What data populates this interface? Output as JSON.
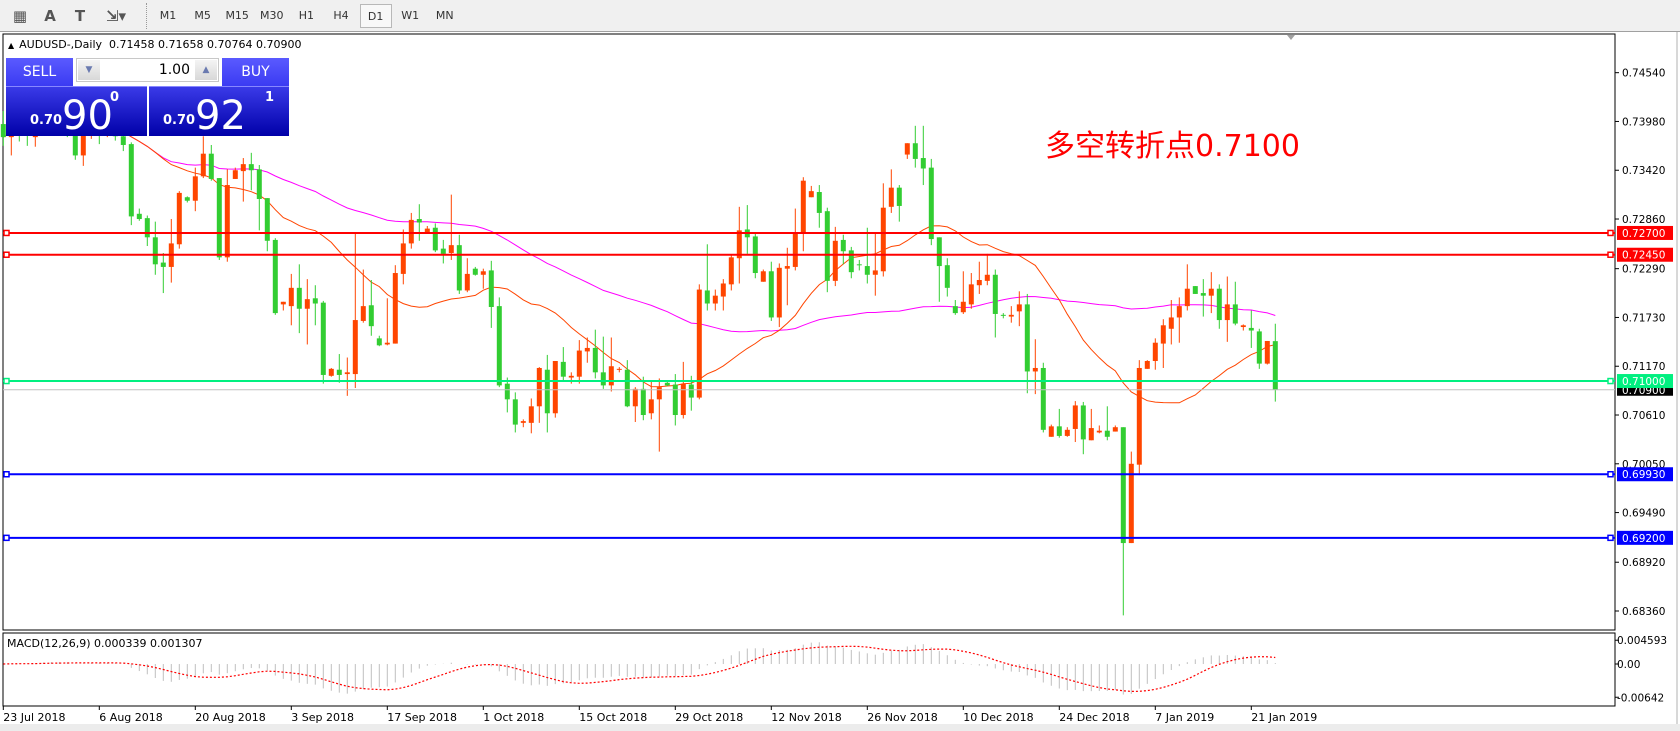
{
  "toolbar": {
    "tools": [
      {
        "name": "grid-f-icon",
        "glyph": "▦"
      },
      {
        "name": "text-icon",
        "glyph": "A"
      },
      {
        "name": "text-label-icon",
        "glyph": "T"
      },
      {
        "name": "arrows-icon",
        "glyph": "⇲▾"
      }
    ],
    "timeframes": [
      "M1",
      "M5",
      "M15",
      "M30",
      "H1",
      "H4",
      "D1",
      "W1",
      "MN"
    ],
    "active_timeframe": "D1"
  },
  "chart": {
    "symbol_title": "AUDUSD-,Daily",
    "ohlc_text": "0.71458 0.71658 0.70764 0.70900",
    "annotation": "多空转折点0.7100",
    "colors": {
      "bull": "#ff4500",
      "bear": "#32cd32",
      "ma_fast": "#ff4500",
      "ma_slow": "#ff00ff",
      "annotation": "#ff0000"
    },
    "price_ticks": [
      "0.74540",
      "0.73980",
      "0.73420",
      "0.72860",
      "0.72290",
      "0.71730",
      "0.71170",
      "0.70610",
      "0.70050",
      "0.69490",
      "0.68920",
      "0.68360"
    ],
    "levels": [
      {
        "price": 0.727,
        "label": "0.72700",
        "color": "#ff0000"
      },
      {
        "price": 0.7245,
        "label": "0.72450",
        "color": "#ff0000"
      },
      {
        "price": 0.71,
        "label": "0.71000",
        "color": "#00f080"
      },
      {
        "price": 0.6993,
        "label": "0.69930",
        "color": "#0000ff"
      },
      {
        "price": 0.692,
        "label": "0.69200",
        "color": "#0000ff"
      }
    ],
    "bid": {
      "price": 0.709,
      "label": "0.70900",
      "color": "#c0c0c0"
    }
  },
  "trade_panel": {
    "sell_label": "SELL",
    "buy_label": "BUY",
    "lot": "1.00",
    "sell": {
      "prefix": "0.70",
      "big": "90",
      "sup": "0"
    },
    "buy": {
      "prefix": "0.70",
      "big": "92",
      "sup": "1"
    }
  },
  "macd": {
    "label": "MACD(12,26,9) 0.000339 0.001307",
    "ticks": [
      "0.004593",
      "0.00",
      "-0.00642"
    ],
    "tick_values": [
      0.004593,
      0,
      -0.00642
    ],
    "ylim": [
      -0.00811,
      0.00599
    ],
    "hist_color": "#c0c0c0",
    "signal_color": "#ff0000"
  },
  "date_axis": [
    "23 Jul 2018",
    "6 Aug 2018",
    "20 Aug 2018",
    "3 Sep 2018",
    "17 Sep 2018",
    "1 Oct 2018",
    "15 Oct 2018",
    "29 Oct 2018",
    "12 Nov 2018",
    "26 Nov 2018",
    "10 Dec 2018",
    "24 Dec 2018",
    "7 Jan 2019",
    "21 Jan 2019"
  ],
  "chart_data": {
    "type": "candlestick",
    "title": "AUDUSD-,Daily",
    "ylim": [
      0.68142,
      0.74984
    ],
    "ohlc": [
      [
        0.7395,
        0.741,
        0.737,
        0.738
      ],
      [
        0.738,
        0.7405,
        0.7359,
        0.739
      ],
      [
        0.739,
        0.74,
        0.7375,
        0.7385
      ],
      [
        0.7392,
        0.7402,
        0.737,
        0.7382
      ],
      [
        0.738,
        0.7405,
        0.7369,
        0.739
      ],
      [
        0.739,
        0.741,
        0.7382,
        0.7398
      ],
      [
        0.7398,
        0.7415,
        0.7385,
        0.7402
      ],
      [
        0.7402,
        0.742,
        0.7388,
        0.7395
      ],
      [
        0.7395,
        0.7405,
        0.738,
        0.7385
      ],
      [
        0.7385,
        0.74,
        0.7354,
        0.7359
      ],
      [
        0.7359,
        0.74,
        0.7347,
        0.7385
      ],
      [
        0.7385,
        0.7402,
        0.7378,
        0.7392
      ],
      [
        0.7392,
        0.7405,
        0.7372,
        0.7388
      ],
      [
        0.7388,
        0.74,
        0.738,
        0.7394
      ],
      [
        0.7394,
        0.7402,
        0.7376,
        0.7381
      ],
      [
        0.7381,
        0.7395,
        0.7364,
        0.7371
      ],
      [
        0.7372,
        0.7374,
        0.7279,
        0.7289
      ],
      [
        0.7292,
        0.7298,
        0.7284,
        0.7286
      ],
      [
        0.7287,
        0.729,
        0.7255,
        0.7265
      ],
      [
        0.7265,
        0.7283,
        0.7222,
        0.7234
      ],
      [
        0.7236,
        0.7247,
        0.7201,
        0.7231
      ],
      [
        0.7231,
        0.7286,
        0.7213,
        0.7258
      ],
      [
        0.7257,
        0.7318,
        0.7252,
        0.7316
      ],
      [
        0.7311,
        0.7312,
        0.7305,
        0.7307
      ],
      [
        0.7307,
        0.7345,
        0.7295,
        0.7335
      ],
      [
        0.7335,
        0.7381,
        0.7333,
        0.7361
      ],
      [
        0.7361,
        0.7371,
        0.733,
        0.7332
      ],
      [
        0.7333,
        0.7333,
        0.7239,
        0.7242
      ],
      [
        0.7242,
        0.7343,
        0.7237,
        0.7325
      ],
      [
        0.7332,
        0.7345,
        0.7332,
        0.7342
      ],
      [
        0.7341,
        0.7356,
        0.7306,
        0.7349
      ],
      [
        0.7349,
        0.7362,
        0.7319,
        0.7342
      ],
      [
        0.7343,
        0.7348,
        0.7273,
        0.7309
      ],
      [
        0.731,
        0.731,
        0.7249,
        0.7261
      ],
      [
        0.7262,
        0.7264,
        0.7176,
        0.7178
      ],
      [
        0.7188,
        0.7191,
        0.7181,
        0.7191
      ],
      [
        0.7186,
        0.7223,
        0.7164,
        0.7207
      ],
      [
        0.7207,
        0.7234,
        0.7155,
        0.7183
      ],
      [
        0.7183,
        0.7217,
        0.7142,
        0.7194
      ],
      [
        0.7195,
        0.721,
        0.7164,
        0.7189
      ],
      [
        0.719,
        0.7192,
        0.7097,
        0.7107
      ],
      [
        0.7106,
        0.7115,
        0.7105,
        0.7114
      ],
      [
        0.7113,
        0.7131,
        0.7098,
        0.7107
      ],
      [
        0.7108,
        0.7127,
        0.7083,
        0.711
      ],
      [
        0.7108,
        0.727,
        0.7092,
        0.717
      ],
      [
        0.7169,
        0.7228,
        0.7167,
        0.7186
      ],
      [
        0.7187,
        0.7216,
        0.7152,
        0.7163
      ],
      [
        0.7149,
        0.7152,
        0.714,
        0.7141
      ],
      [
        0.7142,
        0.7195,
        0.7141,
        0.7144
      ],
      [
        0.7143,
        0.7233,
        0.7143,
        0.7224
      ],
      [
        0.7223,
        0.7274,
        0.7211,
        0.7258
      ],
      [
        0.7258,
        0.7293,
        0.7252,
        0.7285
      ],
      [
        0.7286,
        0.7303,
        0.7261,
        0.7282
      ],
      [
        0.727,
        0.7278,
        0.7269,
        0.7275
      ],
      [
        0.7276,
        0.7281,
        0.7248,
        0.725
      ],
      [
        0.7252,
        0.7262,
        0.7235,
        0.7246
      ],
      [
        0.7247,
        0.7314,
        0.7239,
        0.7256
      ],
      [
        0.7256,
        0.7268,
        0.72,
        0.7204
      ],
      [
        0.7204,
        0.7241,
        0.7202,
        0.7223
      ],
      [
        0.7229,
        0.7231,
        0.7221,
        0.7222
      ],
      [
        0.7222,
        0.7229,
        0.7206,
        0.7226
      ],
      [
        0.7227,
        0.7238,
        0.7161,
        0.7185
      ],
      [
        0.7186,
        0.7196,
        0.7093,
        0.7095
      ],
      [
        0.7097,
        0.7104,
        0.7064,
        0.7079
      ],
      [
        0.7079,
        0.7087,
        0.7041,
        0.705
      ],
      [
        0.7052,
        0.7056,
        0.7047,
        0.7054
      ],
      [
        0.7052,
        0.708,
        0.704,
        0.7071
      ],
      [
        0.7071,
        0.7116,
        0.7052,
        0.7115
      ],
      [
        0.7113,
        0.713,
        0.7041,
        0.7063
      ],
      [
        0.7063,
        0.7123,
        0.7058,
        0.7123
      ],
      [
        0.7122,
        0.7139,
        0.7101,
        0.7105
      ],
      [
        0.7104,
        0.711,
        0.7097,
        0.7106
      ],
      [
        0.7105,
        0.7147,
        0.7097,
        0.7135
      ],
      [
        0.7134,
        0.715,
        0.7121,
        0.7138
      ],
      [
        0.7138,
        0.7159,
        0.7103,
        0.711
      ],
      [
        0.711,
        0.7151,
        0.7091,
        0.7095
      ],
      [
        0.7095,
        0.715,
        0.7088,
        0.7117
      ],
      [
        0.7113,
        0.7116,
        0.711,
        0.7114
      ],
      [
        0.7113,
        0.7124,
        0.707,
        0.7071
      ],
      [
        0.7071,
        0.7093,
        0.7053,
        0.7091
      ],
      [
        0.7091,
        0.7105,
        0.7055,
        0.7061
      ],
      [
        0.7063,
        0.7099,
        0.7056,
        0.7079
      ],
      [
        0.7079,
        0.7103,
        0.7019,
        0.7093
      ],
      [
        0.7098,
        0.7099,
        0.7094,
        0.7095
      ],
      [
        0.7096,
        0.7108,
        0.7049,
        0.7061
      ],
      [
        0.7061,
        0.7122,
        0.7057,
        0.7097
      ],
      [
        0.7096,
        0.7106,
        0.7066,
        0.7081
      ],
      [
        0.7081,
        0.7211,
        0.7079,
        0.7205
      ],
      [
        0.7204,
        0.7257,
        0.7181,
        0.7189
      ],
      [
        0.7189,
        0.7205,
        0.7181,
        0.7198
      ],
      [
        0.7197,
        0.7217,
        0.7181,
        0.7212
      ],
      [
        0.7211,
        0.7245,
        0.7204,
        0.7242
      ],
      [
        0.7241,
        0.73,
        0.7212,
        0.7273
      ],
      [
        0.7274,
        0.7302,
        0.7246,
        0.7265
      ],
      [
        0.7266,
        0.727,
        0.7218,
        0.7224
      ],
      [
        0.7214,
        0.7228,
        0.7214,
        0.7226
      ],
      [
        0.7226,
        0.7237,
        0.7169,
        0.7173
      ],
      [
        0.7173,
        0.7235,
        0.7162,
        0.723
      ],
      [
        0.7229,
        0.7253,
        0.7187,
        0.7232
      ],
      [
        0.7231,
        0.7298,
        0.7227,
        0.7271
      ],
      [
        0.727,
        0.7334,
        0.7249,
        0.733
      ],
      [
        0.7311,
        0.7324,
        0.7311,
        0.7318
      ],
      [
        0.7317,
        0.7325,
        0.7276,
        0.7293
      ],
      [
        0.7295,
        0.7299,
        0.7202,
        0.7215
      ],
      [
        0.7215,
        0.7277,
        0.7209,
        0.7261
      ],
      [
        0.7262,
        0.7268,
        0.7234,
        0.7249
      ],
      [
        0.725,
        0.7254,
        0.7218,
        0.7225
      ],
      [
        0.7234,
        0.7239,
        0.7227,
        0.7233
      ],
      [
        0.7232,
        0.7276,
        0.7212,
        0.7222
      ],
      [
        0.7222,
        0.7269,
        0.7198,
        0.7227
      ],
      [
        0.7226,
        0.7327,
        0.722,
        0.7299
      ],
      [
        0.73,
        0.7343,
        0.7293,
        0.7322
      ],
      [
        0.7322,
        0.7325,
        0.7283,
        0.7301
      ],
      [
        0.736,
        0.7373,
        0.7355,
        0.7373
      ],
      [
        0.7373,
        0.7393,
        0.7345,
        0.7355
      ],
      [
        0.7356,
        0.7393,
        0.7325,
        0.7344
      ],
      [
        0.7345,
        0.7355,
        0.7256,
        0.7263
      ],
      [
        0.7265,
        0.7265,
        0.7191,
        0.7232
      ],
      [
        0.7233,
        0.7241,
        0.7197,
        0.7207
      ],
      [
        0.7186,
        0.7193,
        0.7176,
        0.7178
      ],
      [
        0.7179,
        0.7226,
        0.7177,
        0.7191
      ],
      [
        0.7188,
        0.7224,
        0.7183,
        0.7211
      ],
      [
        0.721,
        0.7237,
        0.72,
        0.7216
      ],
      [
        0.7215,
        0.7246,
        0.721,
        0.7222
      ],
      [
        0.7222,
        0.7228,
        0.715,
        0.7177
      ],
      [
        0.7176,
        0.7178,
        0.7172,
        0.7175
      ],
      [
        0.7174,
        0.7186,
        0.7167,
        0.7176
      ],
      [
        0.718,
        0.7203,
        0.7163,
        0.7188
      ],
      [
        0.7188,
        0.72,
        0.7086,
        0.7111
      ],
      [
        0.7111,
        0.7148,
        0.7085,
        0.7115
      ],
      [
        0.7115,
        0.7121,
        0.7041,
        0.7044
      ],
      [
        0.7036,
        0.705,
        0.7036,
        0.7048
      ],
      [
        0.7048,
        0.7068,
        0.7035,
        0.7037
      ],
      [
        0.7037,
        0.7047,
        0.7036,
        0.7044
      ],
      [
        0.7045,
        0.7077,
        0.703,
        0.7072
      ],
      [
        0.7072,
        0.7076,
        0.7016,
        0.7033
      ],
      [
        0.7032,
        0.7068,
        0.7032,
        0.7046
      ],
      [
        0.7041,
        0.7049,
        0.704,
        0.7043
      ],
      [
        0.7043,
        0.7071,
        0.7032,
        0.7036
      ],
      [
        0.7042,
        0.7049,
        0.7042,
        0.7047
      ],
      [
        0.7047,
        0.7047,
        0.6831,
        0.6914
      ],
      [
        0.6914,
        0.7019,
        0.6914,
        0.7005
      ],
      [
        0.7004,
        0.7124,
        0.6992,
        0.7115
      ],
      [
        0.7114,
        0.7124,
        0.7114,
        0.7123
      ],
      [
        0.7123,
        0.7149,
        0.7113,
        0.7144
      ],
      [
        0.7143,
        0.7171,
        0.7115,
        0.7164
      ],
      [
        0.716,
        0.7193,
        0.7142,
        0.7173
      ],
      [
        0.7173,
        0.7196,
        0.7144,
        0.7186
      ],
      [
        0.7186,
        0.7234,
        0.7181,
        0.7206
      ],
      [
        0.7209,
        0.7209,
        0.72,
        0.72
      ],
      [
        0.7201,
        0.7217,
        0.7174,
        0.7198
      ],
      [
        0.7198,
        0.7225,
        0.7178,
        0.7206
      ],
      [
        0.7206,
        0.7211,
        0.716,
        0.717
      ],
      [
        0.717,
        0.722,
        0.7145,
        0.7188
      ],
      [
        0.7188,
        0.7214,
        0.7164,
        0.7166
      ],
      [
        0.7162,
        0.7165,
        0.7158,
        0.7164
      ],
      [
        0.7161,
        0.7181,
        0.7138,
        0.7158
      ],
      [
        0.7157,
        0.716,
        0.7114,
        0.712
      ],
      [
        0.712,
        0.7146,
        0.7119,
        0.7146
      ],
      [
        0.71458,
        0.71658,
        0.70764,
        0.709
      ]
    ]
  }
}
